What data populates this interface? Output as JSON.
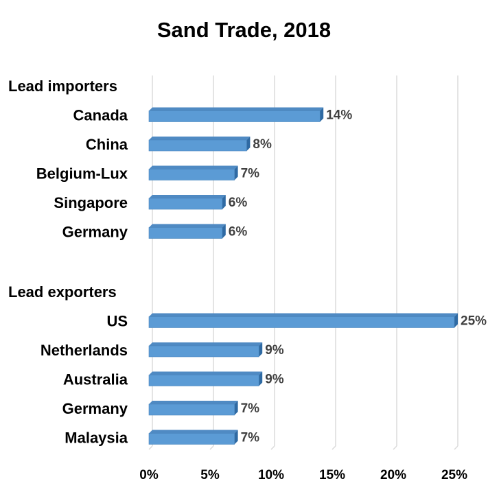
{
  "chart_data": {
    "type": "bar",
    "orientation": "horizontal",
    "title": "Sand Trade, 2018",
    "xlim": [
      0,
      25
    ],
    "x_ticks": [
      0,
      5,
      10,
      15,
      20,
      25
    ],
    "x_tick_labels": [
      "0%",
      "5%",
      "10%",
      "15%",
      "20%",
      "25%"
    ],
    "grid": true,
    "bar_color": "#5b9bd5",
    "groups": [
      {
        "label": "Lead importers",
        "categories": [
          "Canada",
          "China",
          "Belgium-Lux",
          "Singapore",
          "Germany"
        ],
        "values": [
          14,
          8,
          7,
          6,
          6
        ],
        "value_labels": [
          "14%",
          "8%",
          "7%",
          "6%",
          "6%"
        ]
      },
      {
        "label": "Lead exporters",
        "categories": [
          "US",
          "Netherlands",
          "Australia",
          "Germany",
          "Malaysia"
        ],
        "values": [
          25,
          9,
          9,
          7,
          7
        ],
        "value_labels": [
          "25%",
          "9%",
          "9%",
          "7%",
          "7%"
        ]
      }
    ]
  }
}
